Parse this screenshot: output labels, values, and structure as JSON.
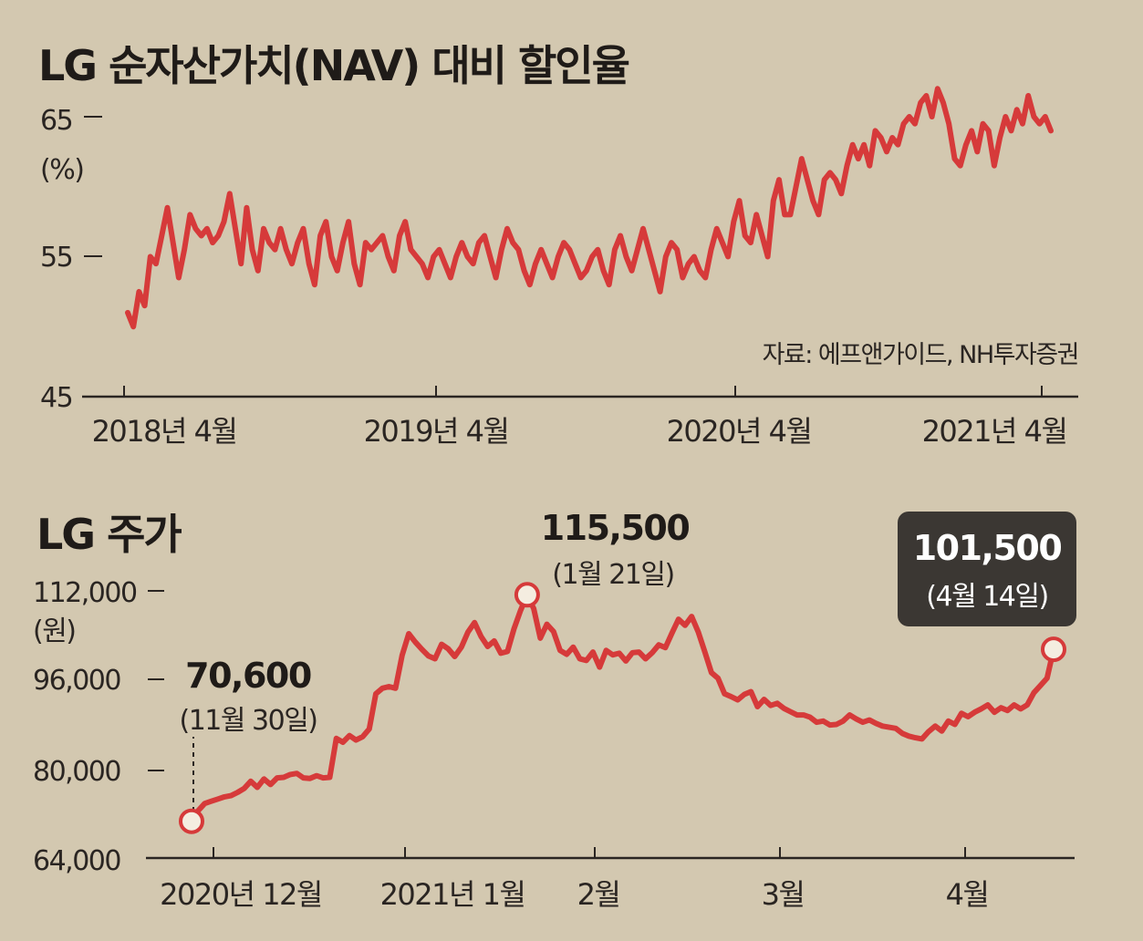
{
  "colors": {
    "background": "#d3c8b0",
    "line": "#d63a3a",
    "axis": "#2a2522",
    "badge": "#3b3733"
  },
  "chart_data": [
    {
      "type": "line",
      "title": "LG 순자산가치(NAV) 대비 할인율",
      "y_unit_label": "(%)",
      "source": "자료: 에프앤가이드, NH투자증권",
      "ylim": [
        45,
        65
      ],
      "y_ticks": [
        "65",
        "55",
        "45"
      ],
      "x_ticks": [
        "2018년 4월",
        "2019년 4월",
        "2020년 4월",
        "2021년 4월"
      ],
      "grid": false,
      "series": [
        {
          "values": [
            51,
            50,
            52.5,
            51.5,
            55,
            54.5,
            56.5,
            58.5,
            56,
            53.5,
            55.5,
            58,
            57,
            56.5,
            57,
            56,
            56.5,
            57.5,
            59.5,
            57,
            54.5,
            58.5,
            55.5,
            54,
            57,
            56,
            55.5,
            57,
            55.5,
            54.5,
            56,
            57,
            54.5,
            53,
            56.5,
            57.5,
            55,
            54,
            56,
            57.5,
            54.5,
            53,
            56,
            55.5,
            56,
            56.5,
            55,
            54,
            56.5,
            57.5,
            55.5,
            55,
            54.5,
            53.5,
            55,
            55.5,
            54.5,
            53.5,
            55,
            56,
            55,
            54.5,
            56,
            56.5,
            55,
            53.5,
            55.5,
            57,
            56,
            55.5,
            54,
            53,
            54.5,
            55.5,
            54.5,
            53.5,
            55,
            56,
            55.5,
            54.5,
            53.5,
            54,
            55,
            55.5,
            54,
            53,
            55.5,
            56.5,
            55,
            54,
            55.5,
            57,
            55.5,
            54,
            52.5,
            55,
            56,
            55.5,
            53.5,
            54.5,
            55,
            54,
            53.5,
            55.5,
            57,
            56,
            55,
            57.5,
            59,
            56.5,
            56,
            58,
            56.5,
            55,
            59,
            60.5,
            58,
            58,
            60,
            62,
            60.5,
            59,
            58,
            60.5,
            61,
            60.5,
            59.5,
            61.5,
            63,
            62,
            63,
            61.5,
            64,
            63.5,
            62.5,
            63.5,
            63,
            64.5,
            65,
            64.5,
            66,
            66.5,
            65,
            67,
            66,
            64.5,
            62,
            61.5,
            63,
            64,
            62.5,
            64.5,
            64,
            61.5,
            63.5,
            65,
            64,
            65.5,
            64.5,
            66.5,
            65,
            64.5,
            65,
            64
          ]
        }
      ]
    },
    {
      "type": "line",
      "title": "LG 주가",
      "y_unit_label": "(원)",
      "ylim": [
        64000,
        112000
      ],
      "y_ticks": [
        "112,000",
        "96,000",
        "80,000",
        "64,000"
      ],
      "x_ticks": [
        "2020년 12월",
        "2021년 1월",
        "2월",
        "3월",
        "4월"
      ],
      "grid": false,
      "series": [
        {
          "values": [
            70600,
            72500,
            73800,
            74200,
            74600,
            75000,
            75200,
            75800,
            76500,
            77800,
            76700,
            78200,
            77200,
            78400,
            78500,
            79000,
            79200,
            78400,
            78300,
            78800,
            78400,
            78500,
            85500,
            84800,
            86000,
            85200,
            85800,
            87200,
            93500,
            94500,
            94800,
            94500,
            100400,
            104300,
            102800,
            101500,
            100300,
            99800,
            102400,
            101600,
            100200,
            101900,
            104600,
            106300,
            103800,
            102000,
            103000,
            100800,
            101100,
            105200,
            108500,
            111300,
            108800,
            103500,
            106000,
            104700,
            101300,
            100600,
            101900,
            99800,
            99500,
            101000,
            98300,
            101300,
            100500,
            100800,
            99400,
            100900,
            101000,
            99800,
            100900,
            102300,
            101800,
            104400,
            106900,
            105800,
            107400,
            104600,
            101000,
            97300,
            96300,
            93500,
            93000,
            92400,
            93400,
            93900,
            91200,
            92500,
            91400,
            91800,
            90900,
            90300,
            89700,
            89700,
            89300,
            88400,
            88600,
            87900,
            88000,
            88600,
            89700,
            89000,
            88400,
            88800,
            88200,
            87700,
            87500,
            87300,
            86400,
            85900,
            85600,
            85400,
            86700,
            87700,
            86800,
            88600,
            88000,
            90000,
            89400,
            90200,
            90800,
            91500,
            90200,
            91000,
            90500,
            91500,
            90800,
            91500,
            93700,
            95000,
            96300,
            101500
          ]
        }
      ],
      "annotations": [
        {
          "value": "70,600",
          "date": "(11월 30일)"
        },
        {
          "value": "115,500",
          "date": "(1월 21일)"
        },
        {
          "value": "101,500",
          "date": "(4월 14일)"
        }
      ]
    }
  ]
}
